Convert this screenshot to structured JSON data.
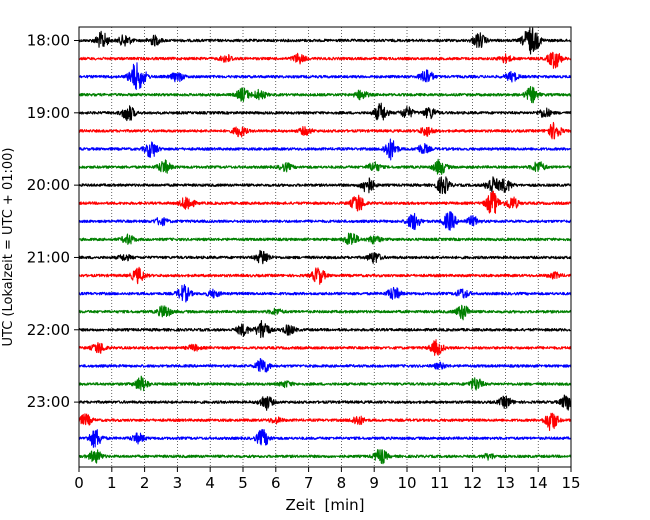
{
  "chart_data": {
    "type": "line",
    "xlabel": "Zeit  [min]",
    "ylabel": "UTC (Lokalzeit = UTC + 01:00)",
    "xlim": [
      0,
      15
    ],
    "x_ticks": [
      "0",
      "1",
      "2",
      "3",
      "4",
      "5",
      "6",
      "7",
      "8",
      "9",
      "10",
      "11",
      "12",
      "13",
      "14",
      "15"
    ],
    "y_tick_labels": [
      "18:00",
      "19:00",
      "20:00",
      "21:00",
      "22:00",
      "23:00"
    ],
    "grid": "vertical dotted",
    "trace_colors": [
      "#000000",
      "#ff0000",
      "#0000ff",
      "#008000"
    ],
    "traces": [
      {
        "start": "18:00",
        "events": [
          [
            0.7,
            0.9
          ],
          [
            1.4,
            0.6
          ],
          [
            2.3,
            0.5
          ],
          [
            12.2,
            0.8
          ],
          [
            13.7,
            1.1
          ],
          [
            13.9,
            0.8
          ]
        ]
      },
      {
        "start": "18:15",
        "events": [
          [
            4.5,
            0.4
          ],
          [
            6.7,
            0.5
          ],
          [
            13.0,
            0.4
          ],
          [
            14.5,
            1.0
          ]
        ]
      },
      {
        "start": "18:30",
        "events": [
          [
            1.7,
            1.2
          ],
          [
            1.9,
            0.7
          ],
          [
            3.0,
            0.5
          ],
          [
            10.6,
            0.8
          ],
          [
            13.2,
            0.5
          ]
        ]
      },
      {
        "start": "18:45",
        "events": [
          [
            5.0,
            0.7
          ],
          [
            5.5,
            0.5
          ],
          [
            8.6,
            0.5
          ],
          [
            13.8,
            0.8
          ]
        ]
      },
      {
        "start": "19:00",
        "events": [
          [
            1.5,
            0.9
          ],
          [
            9.2,
            1.0
          ],
          [
            10.0,
            0.6
          ],
          [
            10.7,
            0.6
          ],
          [
            14.2,
            0.5
          ]
        ]
      },
      {
        "start": "19:15",
        "events": [
          [
            4.9,
            0.6
          ],
          [
            6.9,
            0.4
          ],
          [
            10.6,
            0.5
          ],
          [
            14.5,
            0.9
          ]
        ]
      },
      {
        "start": "19:30",
        "events": [
          [
            2.2,
            0.9
          ],
          [
            9.5,
            1.1
          ],
          [
            10.5,
            0.5
          ]
        ]
      },
      {
        "start": "19:45",
        "events": [
          [
            2.6,
            0.7
          ],
          [
            6.3,
            0.4
          ],
          [
            9.0,
            0.5
          ],
          [
            11.0,
            0.8
          ],
          [
            14.0,
            0.6
          ]
        ]
      },
      {
        "start": "20:00",
        "events": [
          [
            8.8,
            0.9
          ],
          [
            11.1,
            1.0
          ],
          [
            12.6,
            0.9
          ],
          [
            13.0,
            0.7
          ]
        ]
      },
      {
        "start": "20:15",
        "events": [
          [
            3.3,
            0.8
          ],
          [
            8.5,
            1.0
          ],
          [
            12.6,
            1.3
          ],
          [
            13.2,
            0.7
          ]
        ]
      },
      {
        "start": "20:30",
        "events": [
          [
            2.5,
            0.4
          ],
          [
            10.2,
            0.9
          ],
          [
            11.3,
            1.0
          ],
          [
            12.0,
            0.5
          ]
        ]
      },
      {
        "start": "20:45",
        "events": [
          [
            1.5,
            0.5
          ],
          [
            8.3,
            0.8
          ],
          [
            9.0,
            0.4
          ]
        ]
      },
      {
        "start": "21:00",
        "events": [
          [
            5.6,
            0.8
          ],
          [
            9.0,
            0.6
          ],
          [
            1.4,
            0.3
          ]
        ]
      },
      {
        "start": "21:15",
        "events": [
          [
            1.8,
            0.8
          ],
          [
            7.3,
            0.9
          ],
          [
            14.5,
            0.3
          ]
        ]
      },
      {
        "start": "21:30",
        "events": [
          [
            3.2,
            0.9
          ],
          [
            9.6,
            0.7
          ],
          [
            11.7,
            0.5
          ],
          [
            4.1,
            0.4
          ]
        ]
      },
      {
        "start": "21:45",
        "events": [
          [
            2.6,
            0.7
          ],
          [
            11.7,
            0.8
          ],
          [
            6.0,
            0.3
          ]
        ]
      },
      {
        "start": "22:00",
        "events": [
          [
            5.6,
            1.1
          ],
          [
            5.0,
            0.6
          ],
          [
            6.4,
            0.5
          ]
        ]
      },
      {
        "start": "22:15",
        "events": [
          [
            0.6,
            0.6
          ],
          [
            10.9,
            0.8
          ],
          [
            3.5,
            0.3
          ]
        ]
      },
      {
        "start": "22:30",
        "events": [
          [
            5.6,
            0.9
          ],
          [
            11.0,
            0.3
          ]
        ]
      },
      {
        "start": "22:45",
        "events": [
          [
            1.9,
            0.8
          ],
          [
            12.1,
            0.7
          ],
          [
            6.3,
            0.3
          ]
        ]
      },
      {
        "start": "23:00",
        "events": [
          [
            5.7,
            0.8
          ],
          [
            13.0,
            0.6
          ],
          [
            14.9,
            1.0
          ]
        ]
      },
      {
        "start": "23:15",
        "events": [
          [
            0.2,
            0.6
          ],
          [
            8.5,
            0.5
          ],
          [
            14.4,
            1.1
          ],
          [
            6.0,
            0.3
          ]
        ]
      },
      {
        "start": "23:30",
        "events": [
          [
            0.5,
            1.0
          ],
          [
            1.8,
            0.5
          ],
          [
            5.6,
            0.9
          ]
        ]
      },
      {
        "start": "23:45",
        "events": [
          [
            0.5,
            0.7
          ],
          [
            9.2,
            0.8
          ],
          [
            12.5,
            0.3
          ]
        ]
      }
    ]
  }
}
